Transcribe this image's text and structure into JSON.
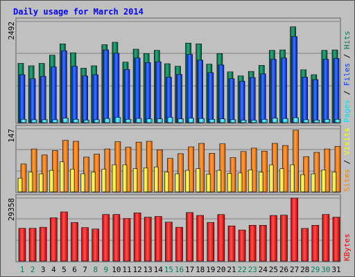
{
  "title": "Daily usage for March 2014",
  "colors": {
    "hits": "#00805c",
    "files": "#0040ff",
    "pages": "#00e0ff",
    "visits": "#ffff00",
    "sites": "#ff8000",
    "kbytes": "#ff0000",
    "title": "#0000ff",
    "weekday": "#000000",
    "weekend": "#00805c"
  },
  "legend": {
    "top": {
      "pages": "Pages",
      "files": "Files",
      "hits": "Hits",
      "sep": " / "
    },
    "middle": {
      "sites": "Sites",
      "visits": "Visits",
      "sep": " / "
    },
    "bottom": {
      "kbytes": "KBytes"
    }
  },
  "chart_data": [
    {
      "type": "bar",
      "panel": "hits-files-pages",
      "ymax_label": "2492",
      "ylim": [
        0,
        2492
      ],
      "categories": [
        "1",
        "2",
        "3",
        "4",
        "5",
        "6",
        "7",
        "8",
        "9",
        "10",
        "11",
        "12",
        "13",
        "14",
        "15",
        "16",
        "17",
        "18",
        "19",
        "20",
        "21",
        "22",
        "23",
        "24",
        "25",
        "26",
        "27",
        "28",
        "29",
        "30",
        "31"
      ],
      "weekend": [
        "1",
        "2",
        "8",
        "9",
        "15",
        "16",
        "22",
        "23",
        "29",
        "30"
      ],
      "series": [
        {
          "name": "Hits",
          "values": [
            1460,
            1400,
            1460,
            1660,
            1940,
            1720,
            1340,
            1400,
            1920,
            1980,
            1490,
            1810,
            1700,
            1780,
            1450,
            1390,
            1960,
            1940,
            1440,
            1700,
            1250,
            1150,
            1260,
            1410,
            1780,
            1790,
            2360,
            1300,
            1180,
            1780,
            1790
          ]
        },
        {
          "name": "Files",
          "values": [
            1180,
            1080,
            1140,
            1370,
            1770,
            1390,
            1150,
            1180,
            1790,
            1710,
            1310,
            1590,
            1480,
            1500,
            1120,
            1190,
            1680,
            1540,
            1230,
            1420,
            1080,
            1020,
            1110,
            1200,
            1560,
            1590,
            2120,
            1120,
            1060,
            1560,
            1580
          ]
        },
        {
          "name": "Pages",
          "values": [
            80,
            70,
            70,
            70,
            110,
            80,
            60,
            70,
            100,
            130,
            80,
            100,
            90,
            90,
            130,
            90,
            110,
            100,
            80,
            90,
            70,
            60,
            60,
            80,
            110,
            100,
            120,
            70,
            60,
            80,
            80
          ]
        }
      ]
    },
    {
      "type": "bar",
      "panel": "visits-sites",
      "ymax_label": "147",
      "ylim": [
        0,
        147
      ],
      "categories": [
        "1",
        "2",
        "3",
        "4",
        "5",
        "6",
        "7",
        "8",
        "9",
        "10",
        "11",
        "12",
        "13",
        "14",
        "15",
        "16",
        "17",
        "18",
        "19",
        "20",
        "21",
        "22",
        "23",
        "24",
        "25",
        "26",
        "27",
        "28",
        "29",
        "30",
        "31"
      ],
      "series": [
        {
          "name": "Visits",
          "values": [
            32,
            46,
            42,
            50,
            70,
            53,
            42,
            46,
            53,
            63,
            63,
            54,
            56,
            58,
            46,
            42,
            50,
            54,
            41,
            50,
            43,
            44,
            51,
            46,
            63,
            54,
            63,
            40,
            42,
            51,
            46
          ]
        },
        {
          "name": "Sites",
          "values": [
            65,
            100,
            86,
            96,
            120,
            118,
            81,
            88,
            100,
            117,
            104,
            116,
            118,
            98,
            78,
            89,
            105,
            113,
            90,
            112,
            80,
            94,
            102,
            95,
            113,
            108,
            144,
            82,
            92,
            100,
            106
          ]
        }
      ]
    },
    {
      "type": "bar",
      "panel": "kbytes",
      "ymax_label": "29358",
      "ylim": [
        0,
        29358
      ],
      "categories": [
        "1",
        "2",
        "3",
        "4",
        "5",
        "6",
        "7",
        "8",
        "9",
        "10",
        "11",
        "12",
        "13",
        "14",
        "15",
        "16",
        "17",
        "18",
        "19",
        "20",
        "21",
        "22",
        "23",
        "24",
        "25",
        "26",
        "27",
        "28",
        "29",
        "30",
        "31"
      ],
      "series": [
        {
          "name": "KBytes",
          "values": [
            15250,
            15250,
            15730,
            20170,
            22900,
            17990,
            15600,
            14930,
            21700,
            21700,
            19840,
            22450,
            20450,
            20820,
            18120,
            15740,
            22600,
            21260,
            17990,
            21670,
            16380,
            14480,
            16680,
            16680,
            21260,
            21400,
            29358,
            15220,
            16680,
            21700,
            20450
          ]
        }
      ]
    }
  ]
}
